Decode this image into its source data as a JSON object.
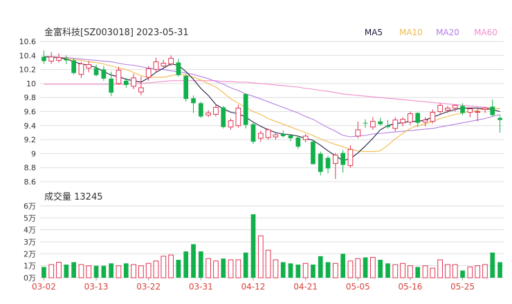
{
  "header": {
    "title": "金富科技[SZ003018] 2023-05-31",
    "volume_label": "成交量 13245"
  },
  "legend": [
    {
      "name": "MA5",
      "color": "#1a1a40"
    },
    {
      "name": "MA10",
      "color": "#f3b94a"
    },
    {
      "name": "MA20",
      "color": "#b27ee0"
    },
    {
      "name": "MA60",
      "color": "#f08ccd"
    }
  ],
  "colors": {
    "up": "#e0314f",
    "down": "#11b04a",
    "grid": "#dddddd",
    "date": "#d8413a"
  },
  "chart_data": [
    {
      "type": "candlestick",
      "title": "金富科技[SZ003018] 2023-05-31",
      "y_ticks": [
        "10.6",
        "10.4",
        "10.2",
        "10",
        "9.8",
        "9.6",
        "9.4",
        "9.2",
        "9",
        "8.8",
        "8.6"
      ],
      "ylim": [
        8.6,
        10.6
      ],
      "x_tick_labels": [
        {
          "index": 0,
          "label": "03-02"
        },
        {
          "index": 7,
          "label": "03-13"
        },
        {
          "index": 14,
          "label": "03-22"
        },
        {
          "index": 21,
          "label": "03-31"
        },
        {
          "index": 28,
          "label": "04-12"
        },
        {
          "index": 35,
          "label": "04-21"
        },
        {
          "index": 42,
          "label": "05-05"
        },
        {
          "index": 49,
          "label": "05-16"
        },
        {
          "index": 56,
          "label": "05-25"
        }
      ],
      "candles": [
        [
          10.38,
          10.47,
          10.28,
          10.32
        ],
        [
          10.32,
          10.45,
          10.28,
          10.38
        ],
        [
          10.33,
          10.43,
          10.3,
          10.37
        ],
        [
          10.35,
          10.4,
          10.28,
          10.33
        ],
        [
          10.33,
          10.36,
          10.13,
          10.15
        ],
        [
          10.13,
          10.31,
          10.08,
          10.28
        ],
        [
          10.22,
          10.32,
          10.16,
          10.27
        ],
        [
          10.22,
          10.27,
          10.1,
          10.12
        ],
        [
          10.2,
          10.25,
          10.04,
          10.07
        ],
        [
          10.07,
          10.17,
          9.82,
          9.87
        ],
        [
          10.0,
          10.24,
          9.98,
          10.19
        ],
        [
          10.04,
          10.08,
          9.94,
          9.98
        ],
        [
          9.96,
          10.14,
          9.92,
          10.08
        ],
        [
          9.88,
          10.1,
          9.83,
          9.94
        ],
        [
          10.09,
          10.25,
          10.04,
          10.21
        ],
        [
          10.2,
          10.37,
          10.16,
          10.31
        ],
        [
          10.25,
          10.34,
          10.21,
          10.29
        ],
        [
          10.28,
          10.4,
          10.25,
          10.36
        ],
        [
          10.3,
          10.35,
          10.1,
          10.12
        ],
        [
          10.11,
          10.13,
          9.74,
          9.78
        ],
        [
          9.79,
          9.83,
          9.58,
          9.72
        ],
        [
          9.72,
          9.74,
          9.51,
          9.53
        ],
        [
          9.55,
          9.62,
          9.52,
          9.58
        ],
        [
          9.56,
          9.71,
          9.53,
          9.66
        ],
        [
          9.66,
          9.68,
          9.36,
          9.38
        ],
        [
          9.38,
          9.5,
          9.34,
          9.47
        ],
        [
          9.4,
          9.7,
          9.37,
          9.65
        ],
        [
          9.85,
          9.86,
          9.36,
          9.41
        ],
        [
          9.42,
          9.44,
          9.14,
          9.17
        ],
        [
          9.22,
          9.33,
          9.17,
          9.29
        ],
        [
          9.23,
          9.36,
          9.2,
          9.34
        ],
        [
          9.24,
          9.3,
          9.2,
          9.27
        ],
        [
          9.28,
          9.33,
          9.23,
          9.25
        ],
        [
          9.26,
          9.28,
          9.18,
          9.22
        ],
        [
          9.23,
          9.26,
          9.07,
          9.1
        ],
        [
          9.2,
          9.28,
          9.16,
          9.25
        ],
        [
          9.17,
          9.19,
          8.85,
          8.85
        ],
        [
          9.0,
          9.03,
          8.69,
          8.74
        ],
        [
          8.94,
          8.97,
          8.72,
          8.79
        ],
        [
          8.86,
          9.01,
          8.64,
          8.98
        ],
        [
          9.01,
          9.05,
          8.73,
          8.84
        ],
        [
          8.83,
          9.12,
          8.8,
          9.06
        ],
        [
          9.25,
          9.46,
          9.22,
          9.34
        ],
        [
          9.44,
          9.49,
          9.37,
          9.43
        ],
        [
          9.38,
          9.52,
          9.34,
          9.46
        ],
        [
          9.46,
          9.51,
          9.4,
          9.42
        ],
        [
          9.4,
          9.48,
          9.36,
          9.38
        ],
        [
          9.36,
          9.52,
          9.32,
          9.48
        ],
        [
          9.44,
          9.52,
          9.39,
          9.49
        ],
        [
          9.45,
          9.6,
          9.41,
          9.57
        ],
        [
          9.58,
          9.59,
          9.38,
          9.44
        ],
        [
          9.45,
          9.52,
          9.39,
          9.48
        ],
        [
          9.46,
          9.63,
          9.43,
          9.59
        ],
        [
          9.6,
          9.72,
          9.56,
          9.69
        ],
        [
          9.62,
          9.68,
          9.58,
          9.65
        ],
        [
          9.65,
          9.7,
          9.6,
          9.69
        ],
        [
          9.68,
          9.72,
          9.55,
          9.58
        ],
        [
          9.59,
          9.66,
          9.52,
          9.64
        ],
        [
          9.59,
          9.64,
          9.46,
          9.6
        ],
        [
          9.63,
          9.67,
          9.58,
          9.65
        ],
        [
          9.67,
          9.77,
          9.53,
          9.55
        ],
        [
          9.51,
          9.55,
          9.3,
          9.48
        ]
      ],
      "ma5": [
        10.38,
        10.38,
        10.37,
        10.35,
        10.31,
        10.28,
        10.26,
        10.23,
        10.17,
        10.12,
        10.1,
        10.06,
        10.04,
        10.02,
        10.08,
        10.16,
        10.22,
        10.28,
        10.26,
        10.17,
        10.06,
        9.93,
        9.83,
        9.7,
        9.64,
        9.59,
        9.57,
        9.52,
        9.45,
        9.39,
        9.34,
        9.3,
        9.28,
        9.27,
        9.25,
        9.22,
        9.19,
        9.12,
        9.04,
        8.97,
        8.9,
        8.93,
        9.01,
        9.11,
        9.22,
        9.34,
        9.4,
        9.43,
        9.44,
        9.46,
        9.46,
        9.48,
        9.52,
        9.56,
        9.6,
        9.63,
        9.65,
        9.65,
        9.65,
        9.64,
        9.63,
        9.6
      ],
      "ma10": [
        10.38,
        10.38,
        10.37,
        10.36,
        10.34,
        10.33,
        10.31,
        10.3,
        10.28,
        10.25,
        10.22,
        10.2,
        10.16,
        10.11,
        10.09,
        10.09,
        10.09,
        10.11,
        10.13,
        10.12,
        10.09,
        10.05,
        10.0,
        9.95,
        9.87,
        9.78,
        9.72,
        9.66,
        9.6,
        9.56,
        9.5,
        9.46,
        9.42,
        9.38,
        9.34,
        9.3,
        9.26,
        9.21,
        9.17,
        9.13,
        9.1,
        9.06,
        9.04,
        9.03,
        9.03,
        9.04,
        9.12,
        9.21,
        9.29,
        9.36,
        9.4,
        9.42,
        9.46,
        9.5,
        9.53,
        9.56,
        9.58,
        9.61,
        9.62,
        9.64,
        9.65,
        9.64
      ],
      "ma20": [
        10.38,
        10.38,
        10.37,
        10.37,
        10.36,
        10.35,
        10.34,
        10.33,
        10.32,
        10.31,
        10.29,
        10.27,
        10.26,
        10.24,
        10.22,
        10.21,
        10.2,
        10.18,
        10.17,
        10.15,
        10.13,
        10.1,
        10.07,
        10.03,
        9.99,
        9.94,
        9.9,
        9.85,
        9.82,
        9.78,
        9.74,
        9.7,
        9.66,
        9.62,
        9.58,
        9.53,
        9.49,
        9.43,
        9.37,
        9.32,
        9.26,
        9.24,
        9.25,
        9.26,
        9.28,
        9.29,
        9.3,
        9.31,
        9.32,
        9.33,
        9.34,
        9.35,
        9.36,
        9.38,
        9.4,
        9.42,
        9.44,
        9.46,
        9.48,
        9.5,
        9.53,
        9.56
      ],
      "ma60": [
        9.99,
        9.99,
        9.99,
        9.99,
        9.99,
        9.99,
        9.99,
        9.99,
        9.99,
        9.99,
        9.99,
        9.99,
        10.0,
        10.0,
        10.01,
        10.02,
        10.03,
        10.04,
        10.04,
        10.04,
        10.04,
        10.04,
        10.04,
        10.04,
        10.03,
        10.03,
        10.02,
        10.02,
        10.01,
        10.0,
        9.99,
        9.98,
        9.97,
        9.96,
        9.95,
        9.93,
        9.92,
        9.9,
        9.89,
        9.87,
        9.85,
        9.84,
        9.83,
        9.82,
        9.81,
        9.8,
        9.79,
        9.78,
        9.77,
        9.76,
        9.75,
        9.74,
        9.73,
        9.72,
        9.71,
        9.7,
        9.69,
        9.68,
        9.67,
        9.66,
        9.65,
        9.64
      ]
    },
    {
      "type": "bar",
      "title": "成交量 13245",
      "y_ticks": [
        "6万",
        "5万",
        "4万",
        "3万",
        "2万",
        "1万",
        "0万"
      ],
      "ylim": [
        0,
        60000
      ],
      "values": [
        9000,
        11000,
        13000,
        11000,
        13000,
        11000,
        10000,
        10000,
        10000,
        12000,
        10000,
        12000,
        11000,
        10000,
        12000,
        14000,
        18000,
        19000,
        15000,
        22000,
        28000,
        22000,
        16000,
        14000,
        16000,
        15000,
        15000,
        21000,
        53000,
        35000,
        23000,
        15000,
        13000,
        12000,
        11000,
        12000,
        11000,
        18000,
        13000,
        12000,
        20000,
        14000,
        16000,
        17000,
        17000,
        15000,
        12000,
        11000,
        12000,
        10000,
        9000,
        10000,
        8000,
        15000,
        11000,
        11000,
        6000,
        9000,
        10000,
        11000,
        21000,
        13000
      ]
    }
  ]
}
